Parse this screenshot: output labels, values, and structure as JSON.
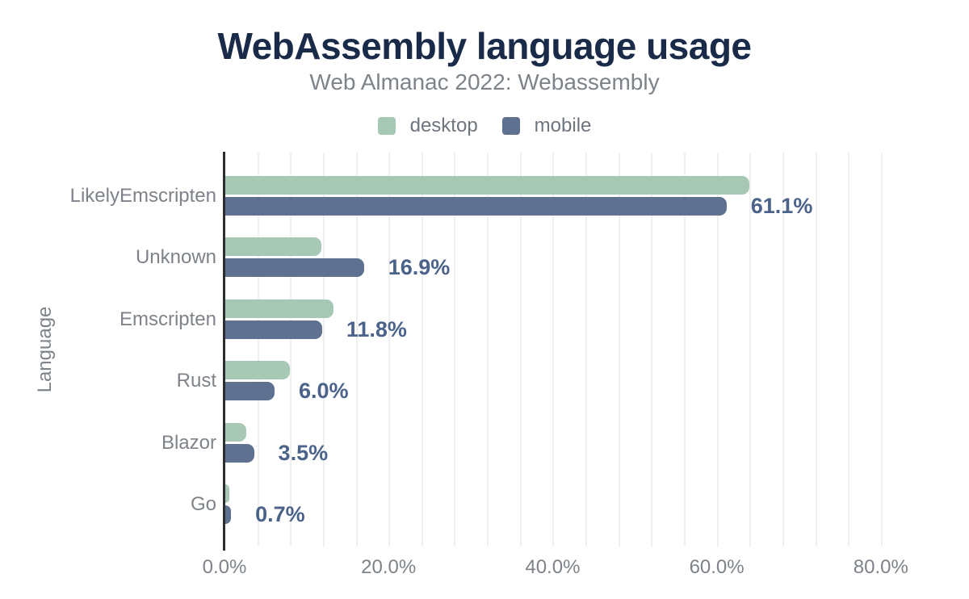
{
  "title": "WebAssembly language usage",
  "subtitle": "Web Almanac 2022: Webassembly",
  "legend": {
    "items": [
      {
        "name": "desktop",
        "label": "desktop",
        "color": "#a7c8b5"
      },
      {
        "name": "mobile",
        "label": "mobile",
        "color": "#5e7191"
      }
    ]
  },
  "colors": {
    "desktop_bar": "#a7c8b5",
    "mobile_bar": "#5e7191",
    "title_text": "#1a2b49",
    "gray_text": "#7d8389",
    "legend_text": "#6f757d",
    "value_label_text": "#4b628b",
    "axis_line": "#2d2d2d",
    "gridline": "#f0f0f0"
  },
  "chart_data": {
    "type": "bar",
    "orientation": "horizontal",
    "title": "WebAssembly language usage",
    "subtitle": "Web Almanac 2022: Webassembly",
    "categories": [
      "LikelyEmscripten",
      "Unknown",
      "Emscripten",
      "Rust",
      "Blazor",
      "Go"
    ],
    "series": [
      {
        "name": "desktop",
        "values": [
          63.9,
          11.7,
          13.2,
          7.9,
          2.6,
          0.5
        ]
      },
      {
        "name": "mobile",
        "values": [
          61.1,
          16.9,
          11.8,
          6.0,
          3.5,
          0.7
        ]
      }
    ],
    "data_labels": [
      "61.1%",
      "16.9%",
      "11.8%",
      "6.0%",
      "3.5%",
      "0.7%"
    ],
    "data_labels_series": "mobile",
    "xlabel": "",
    "ylabel": "Language",
    "x_ticks": [
      {
        "value": 0,
        "label": "0.0%"
      },
      {
        "value": 20,
        "label": "20.0%"
      },
      {
        "value": 40,
        "label": "40.0%"
      },
      {
        "value": 60,
        "label": "60.0%"
      },
      {
        "value": 80,
        "label": "80.0%"
      }
    ],
    "xlim": [
      0,
      86.8
    ],
    "grid": "on",
    "grid_step_pct": 4,
    "legend_position": "top"
  }
}
